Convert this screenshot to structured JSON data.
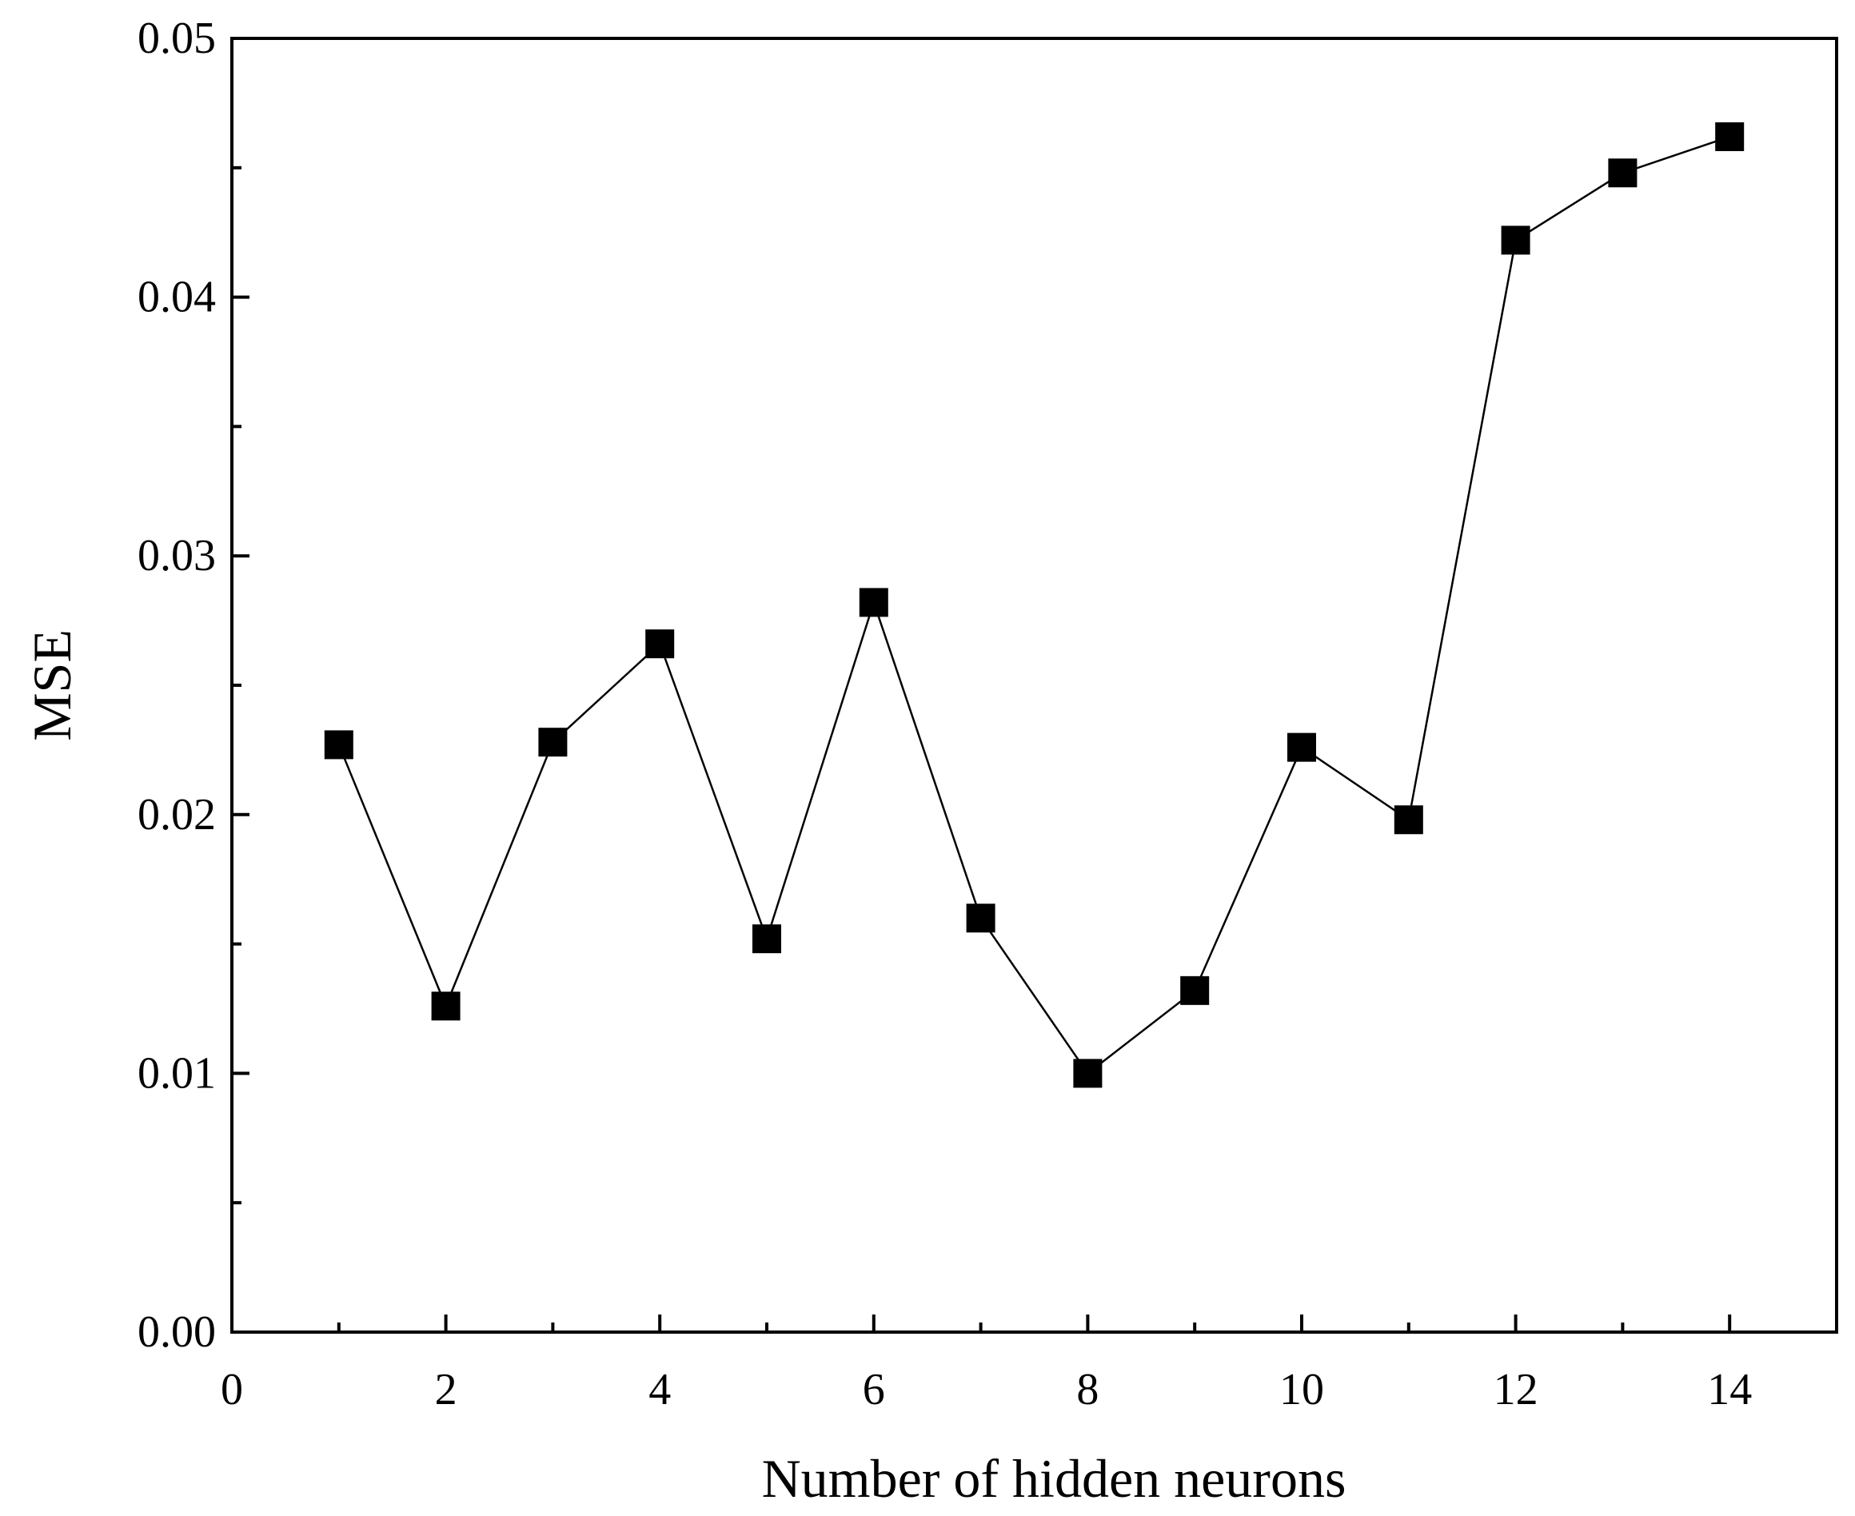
{
  "chart_data": {
    "type": "line",
    "title": "",
    "xlabel": "Number of hidden neurons",
    "ylabel": "MSE",
    "xlim": [
      0,
      15
    ],
    "ylim": [
      0,
      0.05
    ],
    "xticks": [
      0,
      2,
      4,
      6,
      8,
      10,
      12,
      14
    ],
    "xtick_labels": [
      "0",
      "2",
      "4",
      "6",
      "8",
      "10",
      "12",
      "14"
    ],
    "yticks": [
      0,
      0.01,
      0.02,
      0.03,
      0.04,
      0.05
    ],
    "ytick_labels": [
      "0.00",
      "0.01",
      "0.02",
      "0.03",
      "0.04",
      "0.05"
    ],
    "grid": false,
    "marker": "square",
    "color": "#000000",
    "series": [
      {
        "x": [
          1,
          2,
          3,
          4,
          5,
          6,
          7,
          8,
          9,
          10,
          11,
          12,
          13,
          14
        ],
        "values": [
          0.0227,
          0.0126,
          0.0228,
          0.0266,
          0.0152,
          0.0282,
          0.016,
          0.01,
          0.0132,
          0.0226,
          0.0198,
          0.0422,
          0.0448,
          0.0462
        ]
      }
    ]
  }
}
